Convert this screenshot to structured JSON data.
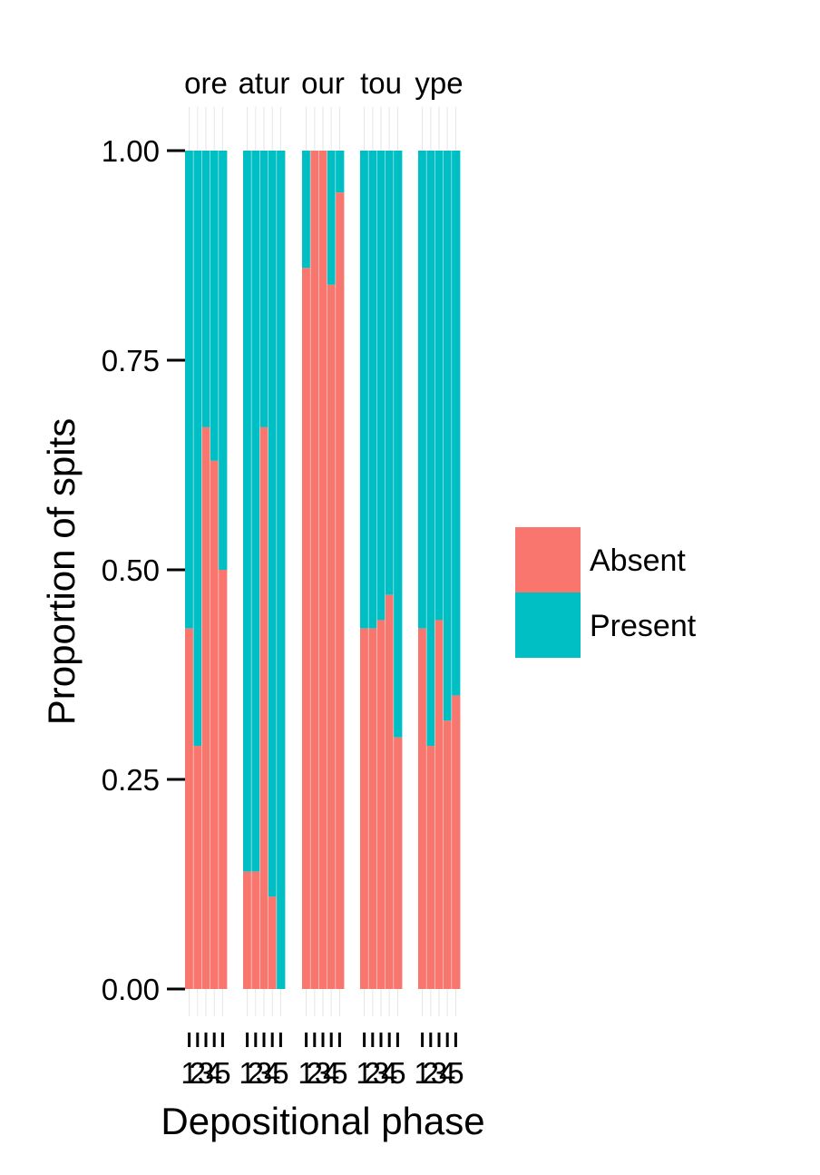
{
  "chart_data": {
    "type": "bar",
    "stacked": true,
    "normalized": true,
    "facets": [
      {
        "strip_label": "ore",
        "categories": [
          "1",
          "2",
          "3",
          "4",
          "5"
        ],
        "absent": [
          0.43,
          0.29,
          0.67,
          0.63,
          0.5
        ]
      },
      {
        "strip_label": "atur",
        "categories": [
          "1",
          "2",
          "3",
          "4",
          "5"
        ],
        "absent": [
          0.14,
          0.14,
          0.67,
          0.11,
          0.0
        ]
      },
      {
        "strip_label": "our",
        "categories": [
          "1",
          "2",
          "3",
          "4",
          "5"
        ],
        "absent": [
          0.86,
          1.0,
          1.0,
          0.84,
          0.95
        ]
      },
      {
        "strip_label": "tou",
        "categories": [
          "1",
          "2",
          "3",
          "4",
          "5"
        ],
        "absent": [
          0.43,
          0.43,
          0.44,
          0.47,
          0.3
        ]
      },
      {
        "strip_label": "ype",
        "categories": [
          "1",
          "2",
          "3",
          "4",
          "5"
        ],
        "absent": [
          0.43,
          0.29,
          0.44,
          0.32,
          0.35
        ]
      }
    ],
    "x_tick_labels": [
      "1",
      "2",
      "3",
      "4",
      "5"
    ],
    "series": [
      {
        "name": "Absent",
        "color": "#F8766D"
      },
      {
        "name": "Present",
        "color": "#00BFC4"
      }
    ],
    "xlabel": "Depositional phase",
    "ylabel": "Proportion of spits",
    "ylim": [
      0,
      1
    ],
    "y_ticks": [
      0,
      0.25,
      0.5,
      0.75,
      1.0
    ],
    "y_tick_labels": [
      "0.00",
      "0.25",
      "0.50",
      "0.75",
      "1.00"
    ],
    "grid": true,
    "legend_position": "right"
  }
}
